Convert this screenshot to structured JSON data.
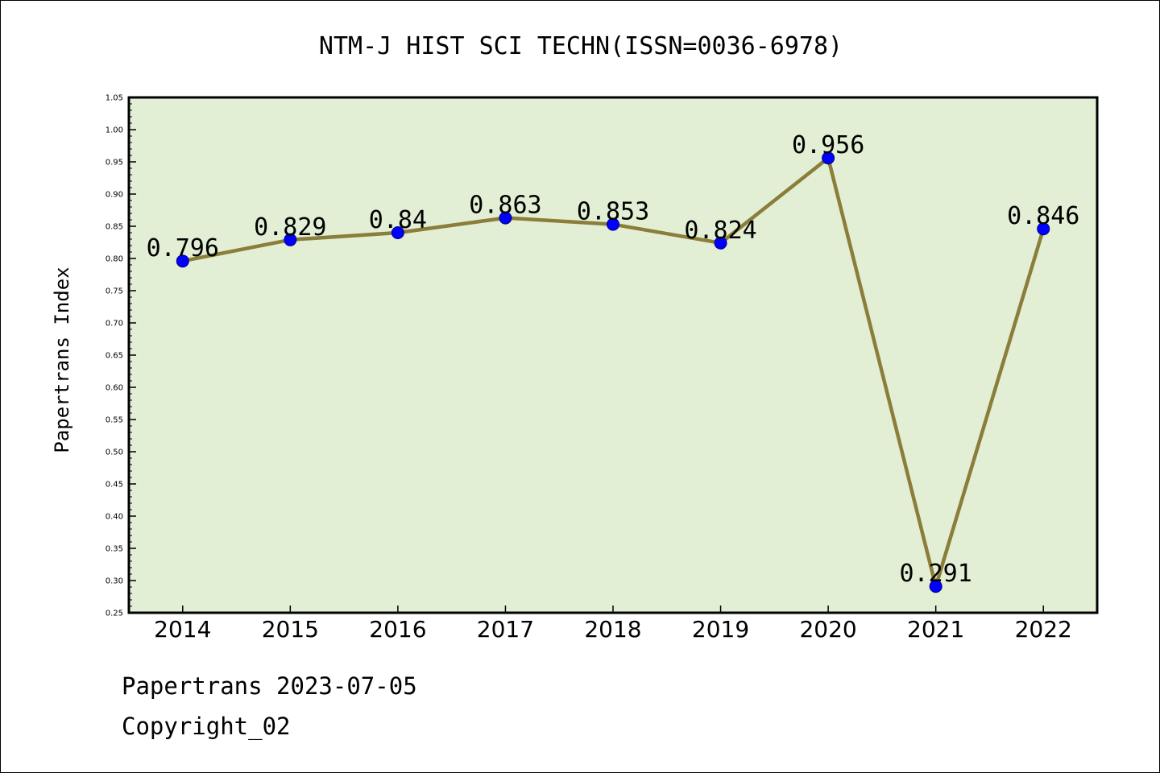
{
  "chart_data": {
    "type": "line",
    "title": "NTM-J HIST SCI TECHN(ISSN=0036-6978)",
    "xlabel": "",
    "ylabel": "Papertrans Index",
    "categories": [
      "2014",
      "2015",
      "2016",
      "2017",
      "2018",
      "2019",
      "2020",
      "2021",
      "2022"
    ],
    "values": [
      0.796,
      0.829,
      0.84,
      0.863,
      0.853,
      0.824,
      0.956,
      0.291,
      0.846
    ],
    "data_labels": [
      "0.796",
      "0.829",
      "0.84",
      "0.863",
      "0.853",
      "0.824",
      "0.956",
      "0.291",
      "0.846"
    ],
    "ylim": [
      0.25,
      1.05
    ],
    "yticks": [
      "0.25",
      "0.30",
      "0.35",
      "0.40",
      "0.45",
      "0.50",
      "0.55",
      "0.60",
      "0.65",
      "0.70",
      "0.75",
      "0.80",
      "0.85",
      "0.90",
      "0.95",
      "1.00",
      "1.05"
    ],
    "grid": false,
    "legend": "none",
    "colors": {
      "plot_background": "#e2efd5",
      "line": "#8b7d3a",
      "marker": "#0000ff",
      "marker_edge": "#000080",
      "axes": "#000000"
    }
  },
  "footer": {
    "line1": "Papertrans 2023-07-05",
    "line2": "Copyright_02"
  }
}
